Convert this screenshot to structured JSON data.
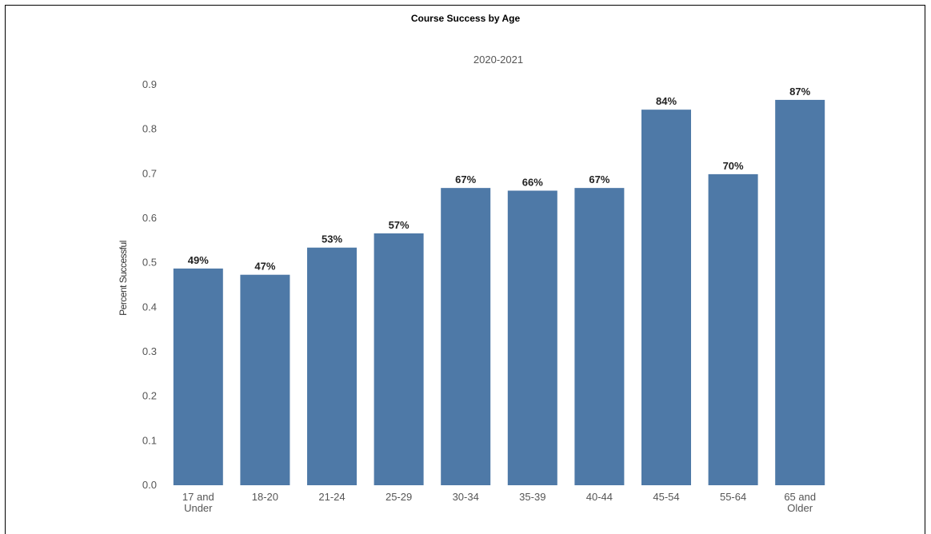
{
  "chart_data": {
    "type": "bar",
    "title": "Course Success by Age",
    "subtitle": "2020-2021",
    "ylabel": "Percent Successful",
    "xlabel": "",
    "ylim": [
      0,
      0.9
    ],
    "yticks": [
      "0.0",
      "0.1",
      "0.2",
      "0.3",
      "0.4",
      "0.5",
      "0.6",
      "0.7",
      "0.8",
      "0.9"
    ],
    "categories": [
      [
        "17 and",
        "Under"
      ],
      [
        "18-20"
      ],
      [
        "21-24"
      ],
      [
        "25-29"
      ],
      [
        "30-34"
      ],
      [
        "35-39"
      ],
      [
        "40-44"
      ],
      [
        "45-54"
      ],
      [
        "55-64"
      ],
      [
        "65 and",
        "Older"
      ]
    ],
    "values": [
      0.487,
      0.473,
      0.534,
      0.566,
      0.668,
      0.662,
      0.668,
      0.844,
      0.699,
      0.866
    ],
    "data_labels": [
      "49%",
      "47%",
      "53%",
      "57%",
      "67%",
      "66%",
      "67%",
      "84%",
      "70%",
      "87%"
    ],
    "bar_color": "#4e79a7",
    "grid": false,
    "legend": "none"
  }
}
